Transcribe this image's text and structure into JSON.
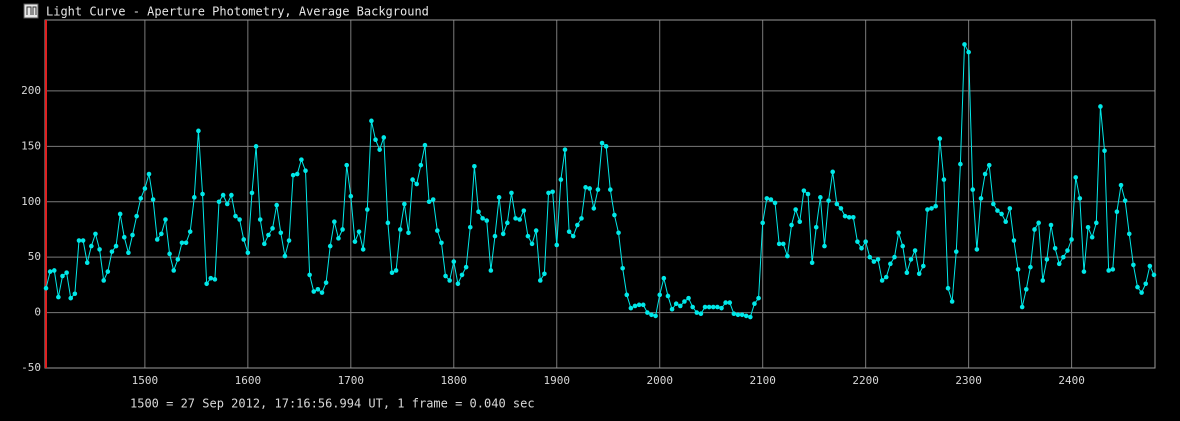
{
  "chart_data": {
    "type": "line",
    "title": "Light Curve - Aperture Photometry, Average Background",
    "footnote": "1500 = 27 Sep 2012, 17:16:56.994 UT, 1 frame = 0.040 sec",
    "xlim": [
      1403,
      2481
    ],
    "ylim": [
      -50,
      264
    ],
    "xticks": [
      1500,
      1600,
      1700,
      1800,
      1900,
      2000,
      2100,
      2200,
      2300,
      2400
    ],
    "yticks": [
      -50,
      0,
      50,
      100,
      150,
      200
    ],
    "grid": true,
    "x": [
      1404,
      1408,
      1412,
      1416,
      1420,
      1424,
      1428,
      1432,
      1436,
      1440,
      1444,
      1448,
      1452,
      1456,
      1460,
      1464,
      1468,
      1472,
      1476,
      1480,
      1484,
      1488,
      1492,
      1496,
      1500,
      1504,
      1508,
      1512,
      1516,
      1520,
      1524,
      1528,
      1532,
      1536,
      1540,
      1544,
      1548,
      1552,
      1556,
      1560,
      1564,
      1568,
      1572,
      1576,
      1580,
      1584,
      1588,
      1592,
      1596,
      1600,
      1604,
      1608,
      1612,
      1616,
      1620,
      1624,
      1628,
      1632,
      1636,
      1640,
      1644,
      1648,
      1652,
      1656,
      1660,
      1664,
      1668,
      1672,
      1676,
      1680,
      1684,
      1688,
      1692,
      1696,
      1700,
      1704,
      1708,
      1712,
      1716,
      1720,
      1724,
      1728,
      1732,
      1736,
      1740,
      1744,
      1748,
      1752,
      1756,
      1760,
      1764,
      1768,
      1772,
      1776,
      1780,
      1784,
      1788,
      1792,
      1796,
      1800,
      1804,
      1808,
      1812,
      1816,
      1820,
      1824,
      1828,
      1832,
      1836,
      1840,
      1844,
      1848,
      1852,
      1856,
      1860,
      1864,
      1868,
      1872,
      1876,
      1880,
      1884,
      1888,
      1892,
      1896,
      1900,
      1904,
      1908,
      1912,
      1916,
      1920,
      1924,
      1928,
      1932,
      1936,
      1940,
      1944,
      1948,
      1952,
      1956,
      1960,
      1964,
      1968,
      1972,
      1976,
      1980,
      1984,
      1988,
      1992,
      1996,
      2000,
      2004,
      2008,
      2012,
      2016,
      2020,
      2024,
      2028,
      2032,
      2036,
      2040,
      2044,
      2048,
      2052,
      2056,
      2060,
      2064,
      2068,
      2072,
      2076,
      2080,
      2084,
      2088,
      2092,
      2096,
      2100,
      2104,
      2108,
      2112,
      2116,
      2120,
      2124,
      2128,
      2132,
      2136,
      2140,
      2144,
      2148,
      2152,
      2156,
      2160,
      2164,
      2168,
      2172,
      2176,
      2180,
      2184,
      2188,
      2192,
      2196,
      2200,
      2204,
      2208,
      2212,
      2216,
      2220,
      2224,
      2228,
      2232,
      2236,
      2240,
      2244,
      2248,
      2252,
      2256,
      2260,
      2264,
      2268,
      2272,
      2276,
      2280,
      2284,
      2288,
      2292,
      2296,
      2300,
      2304,
      2308,
      2312,
      2316,
      2320,
      2324,
      2328,
      2332,
      2336,
      2340,
      2344,
      2348,
      2352,
      2356,
      2360,
      2364,
      2368,
      2372,
      2376,
      2380,
      2384,
      2388,
      2392,
      2396,
      2400,
      2404,
      2408,
      2412,
      2416,
      2420,
      2424,
      2428,
      2432,
      2436,
      2440,
      2444,
      2448,
      2452,
      2456,
      2460,
      2464,
      2468,
      2472,
      2476,
      2480
    ],
    "series": [
      {
        "color": "#00e8e8",
        "values": [
          22,
          37,
          38,
          14,
          33,
          36,
          13,
          17,
          65,
          65,
          45,
          60,
          71,
          57,
          29,
          37,
          55,
          60,
          89,
          68,
          54,
          70,
          87,
          103,
          112,
          125,
          102,
          66,
          71,
          84,
          53,
          38,
          48,
          63,
          63,
          73,
          104,
          164,
          107,
          26,
          31,
          30,
          100,
          106,
          98,
          106,
          87,
          84,
          66,
          54,
          108,
          150,
          84,
          62,
          70,
          76,
          97,
          72,
          51,
          65,
          124,
          125,
          138,
          128,
          34,
          19,
          21,
          18,
          27,
          60,
          82,
          67,
          75,
          133,
          105,
          64,
          73,
          57,
          93,
          173,
          156,
          147,
          158,
          81,
          36,
          38,
          75,
          98,
          72,
          120,
          116,
          133,
          151,
          100,
          102,
          74,
          63,
          33,
          29,
          46,
          26,
          34,
          41,
          77,
          132,
          91,
          85,
          83,
          38,
          69,
          104,
          71,
          81,
          108,
          85,
          84,
          92,
          69,
          62,
          74,
          29,
          35,
          108,
          109,
          61,
          120,
          147,
          73,
          69,
          79,
          85,
          113,
          112,
          94,
          111,
          153,
          150,
          111,
          88,
          72,
          40,
          16,
          4,
          6,
          7,
          7,
          0,
          -2,
          -3,
          16,
          31,
          15,
          3,
          8,
          6,
          10,
          13,
          5,
          0,
          -1,
          5,
          5,
          5,
          5,
          4,
          9,
          9,
          -1,
          -2,
          -2,
          -3,
          -4,
          8,
          13,
          81,
          103,
          102,
          99,
          62,
          62,
          51,
          79,
          93,
          82,
          110,
          107,
          45,
          77,
          104,
          60,
          101,
          127,
          98,
          94,
          87,
          86,
          86,
          64,
          58,
          64,
          50,
          46,
          48,
          29,
          32,
          44,
          50,
          72,
          60,
          36,
          48,
          56,
          35,
          42,
          93,
          94,
          96,
          157,
          120,
          22,
          10,
          55,
          134,
          242,
          235,
          111,
          57,
          103,
          125,
          133,
          98,
          92,
          89,
          82,
          94,
          65,
          39,
          5,
          21,
          41,
          75,
          81,
          29,
          48,
          79,
          58,
          44,
          50,
          56,
          66,
          122,
          103,
          37,
          77,
          68,
          81,
          186,
          146,
          38,
          39,
          91,
          115,
          101,
          71,
          43,
          23,
          18,
          26,
          42,
          34
        ]
      }
    ]
  }
}
